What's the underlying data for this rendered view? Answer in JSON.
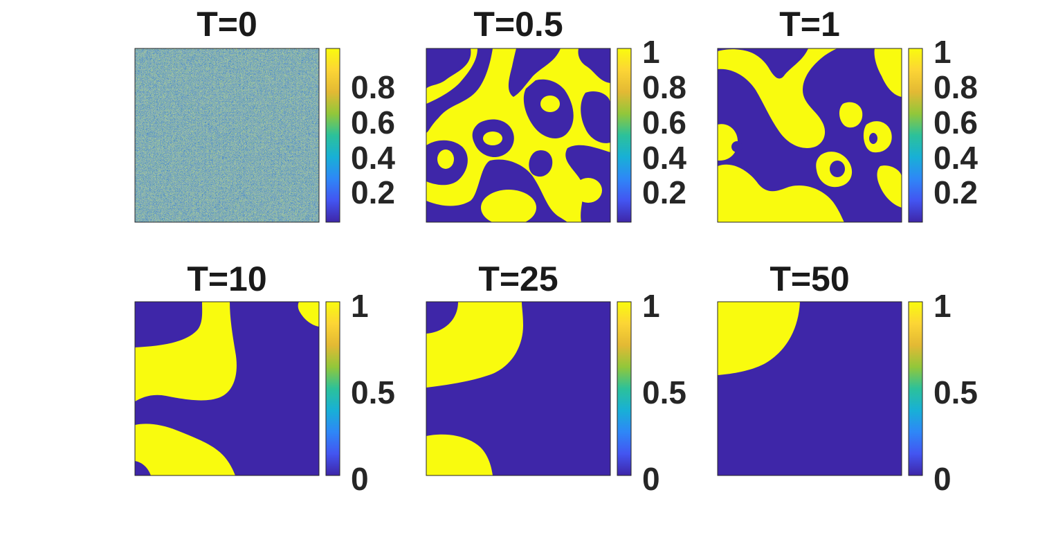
{
  "colors": {
    "low": "#3e26a8",
    "high": "#f9fb0e",
    "colormap": [
      "#3e26a8",
      "#4355f1",
      "#2e87f7",
      "#18b0d6",
      "#2cc19a",
      "#92c73a",
      "#e3b934",
      "#fcd535",
      "#f9fb0e"
    ]
  },
  "chart_data": [
    {
      "type": "heatmap",
      "title": "T=0",
      "pattern": "random-noise",
      "colorbar": {
        "ticks": [
          0.8,
          0.6,
          0.4,
          0.2
        ],
        "labels": [
          "0.8",
          "0.6",
          "0.4",
          "0.2"
        ],
        "range": [
          0.02,
          0.98
        ]
      }
    },
    {
      "type": "heatmap",
      "title": "T=0.5",
      "pattern": "fine-domains",
      "colorbar": {
        "ticks": [
          1,
          0.8,
          0.6,
          0.4,
          0.2
        ],
        "labels": [
          "1",
          "0.8",
          "0.6",
          "0.4",
          "0.2"
        ],
        "range": [
          0.02,
          1
        ]
      }
    },
    {
      "type": "heatmap",
      "title": "T=1",
      "pattern": "coarser-domains",
      "colorbar": {
        "ticks": [
          1,
          0.8,
          0.6,
          0.4,
          0.2
        ],
        "labels": [
          "1",
          "0.8",
          "0.6",
          "0.4",
          "0.2"
        ],
        "range": [
          0.02,
          1
        ]
      }
    },
    {
      "type": "heatmap",
      "title": "T=10",
      "pattern": "large-domains",
      "colorbar": {
        "ticks": [
          1,
          0.5,
          0
        ],
        "labels": [
          "1",
          "0.5",
          "0"
        ],
        "range": [
          0,
          1
        ]
      }
    },
    {
      "type": "heatmap",
      "title": "T=25",
      "pattern": "two-domains",
      "colorbar": {
        "ticks": [
          1,
          0.5,
          0
        ],
        "labels": [
          "1",
          "0.5",
          "0"
        ],
        "range": [
          0,
          1
        ]
      }
    },
    {
      "type": "heatmap",
      "title": "T=50",
      "pattern": "single-domain",
      "colorbar": {
        "ticks": [
          1,
          0.5,
          0
        ],
        "labels": [
          "1",
          "0.5",
          "0"
        ],
        "range": [
          0,
          1
        ]
      }
    }
  ]
}
